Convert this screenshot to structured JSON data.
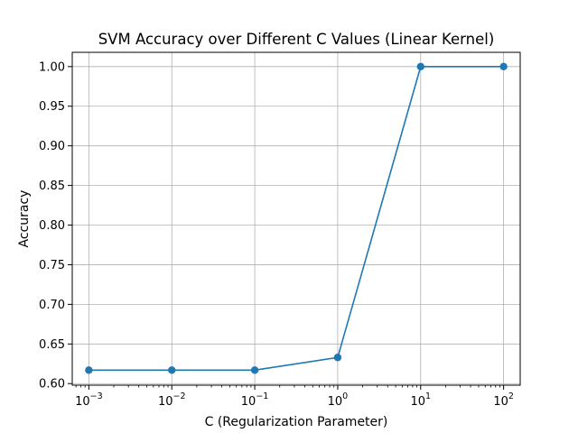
{
  "chart_data": {
    "type": "line",
    "title": "SVM Accuracy over Different C Values (Linear Kernel)",
    "xlabel": "C (Regularization Parameter)",
    "ylabel": "Accuracy",
    "x_scale": "log",
    "x": [
      0.001,
      0.01,
      0.1,
      1,
      10,
      100
    ],
    "x_tick_labels": [
      {
        "base": "10",
        "exp": "−3"
      },
      {
        "base": "10",
        "exp": "−2"
      },
      {
        "base": "10",
        "exp": "−1"
      },
      {
        "base": "10",
        "exp": "0"
      },
      {
        "base": "10",
        "exp": "1"
      },
      {
        "base": "10",
        "exp": "2"
      }
    ],
    "y_ticks": [
      0.6,
      0.65,
      0.7,
      0.75,
      0.8,
      0.85,
      0.9,
      0.95,
      1.0
    ],
    "y_tick_labels": [
      "0.60",
      "0.65",
      "0.70",
      "0.75",
      "0.80",
      "0.85",
      "0.90",
      "0.95",
      "1.00"
    ],
    "ylim": [
      0.598,
      1.018
    ],
    "series": [
      {
        "values": [
          0.617,
          0.617,
          0.617,
          0.633,
          1.0,
          1.0
        ]
      }
    ],
    "grid": true,
    "marker": "circle",
    "line_color": "#1f77b4",
    "grid_color": "#b0b0b0"
  }
}
